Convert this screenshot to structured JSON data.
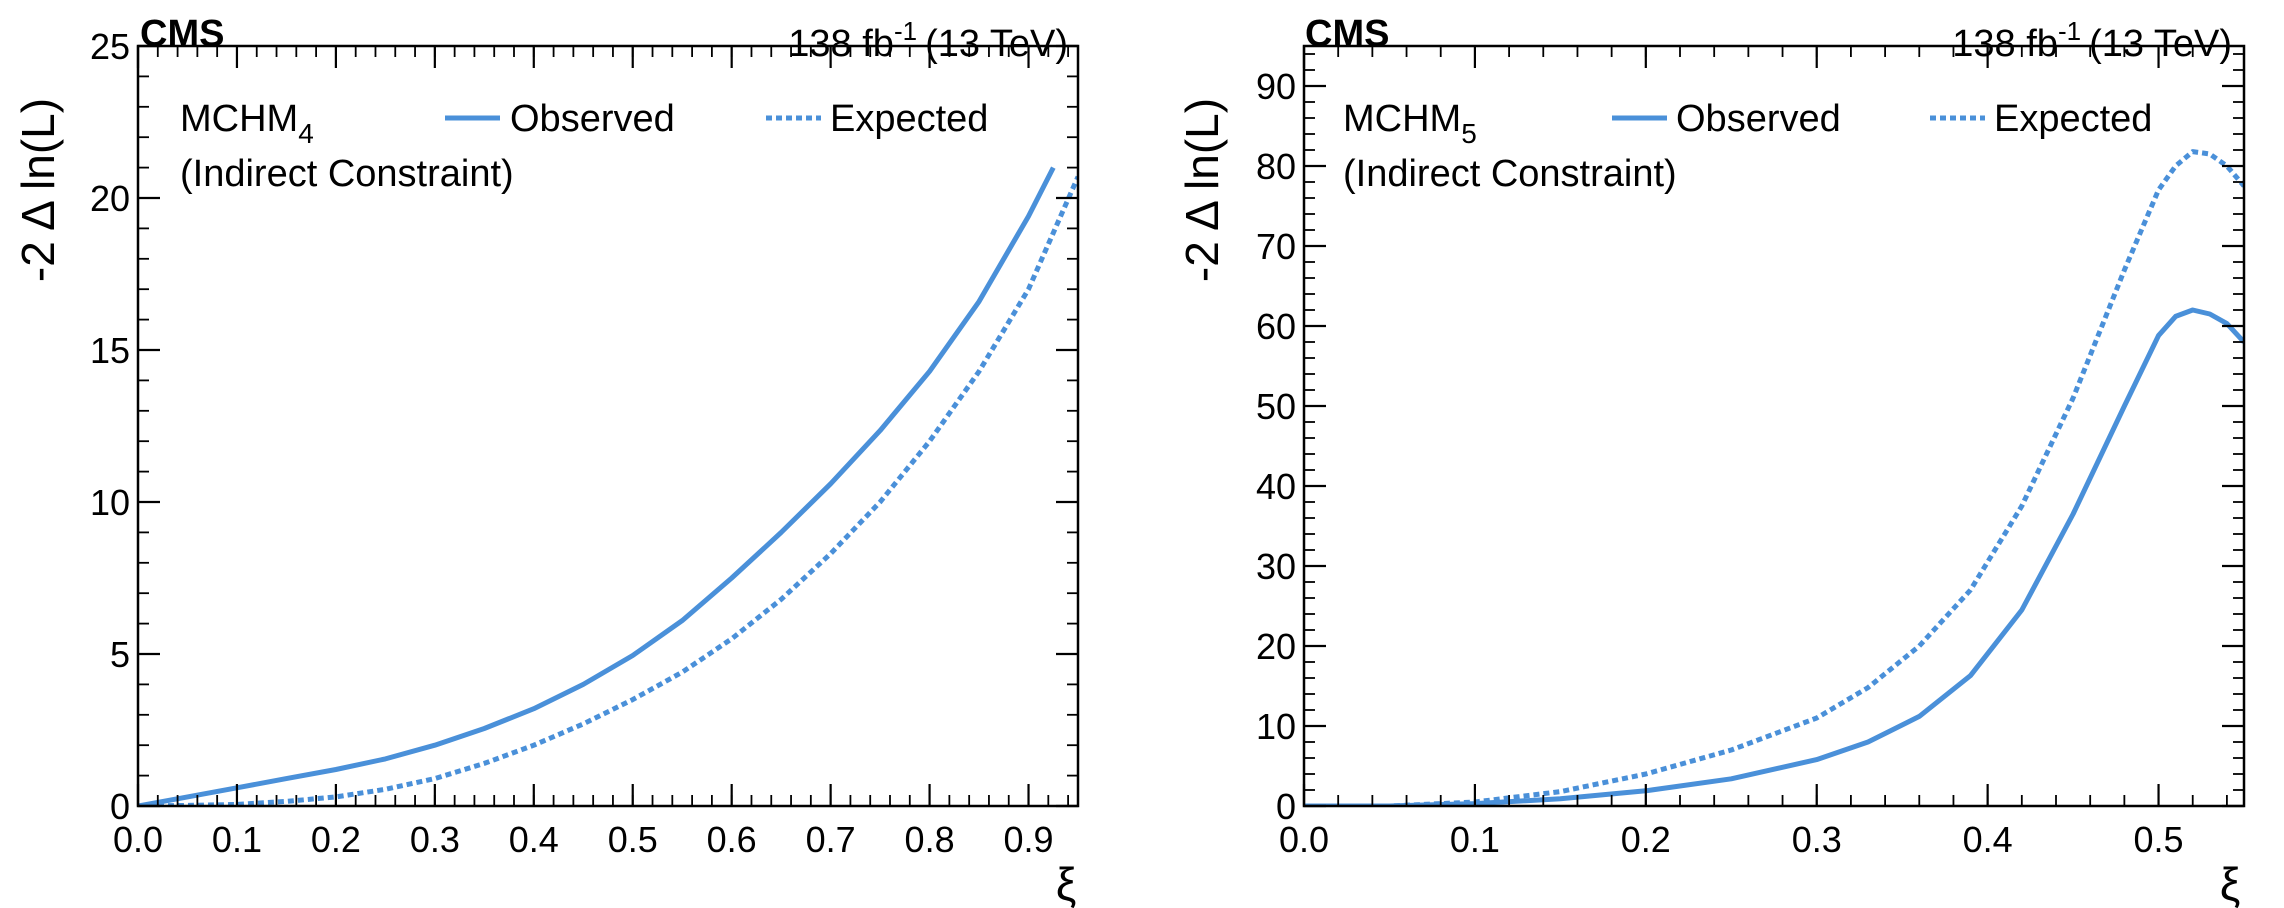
{
  "figure": {
    "experiment": "CMS",
    "lumi_value": "138 fb",
    "lumi_exp": "-1",
    "energy": "(13 TeV)"
  },
  "chart_data": [
    {
      "type": "line",
      "ylabel": "-2 Δ ln(L)",
      "xlabel": "ξ",
      "xlim": [
        0,
        0.95
      ],
      "ylim": [
        0,
        25
      ],
      "xticks": [
        0.0,
        0.1,
        0.2,
        0.3,
        0.4,
        0.5,
        0.6,
        0.7,
        0.8,
        0.9
      ],
      "xtick_labels": [
        "0.0",
        "0.1",
        "0.2",
        "0.3",
        "0.4",
        "0.5",
        "0.6",
        "0.7",
        "0.8",
        "0.9"
      ],
      "yticks": [
        0,
        5,
        10,
        15,
        20,
        25
      ],
      "ytick_labels": [
        "0",
        "5",
        "10",
        "15",
        "20",
        "25"
      ],
      "xminor": 0.02,
      "yminor": 1,
      "model_main": "MCHM",
      "model_sub": "4",
      "constraint": "(Indirect Constraint)",
      "legend_position": "top",
      "color": "#4a90d9",
      "series": [
        {
          "name": "Observed",
          "style": "solid",
          "x": [
            0,
            0.05,
            0.1,
            0.15,
            0.2,
            0.25,
            0.3,
            0.35,
            0.4,
            0.45,
            0.5,
            0.55,
            0.6,
            0.65,
            0.7,
            0.75,
            0.8,
            0.85,
            0.9,
            0.925
          ],
          "y": [
            0,
            0.3,
            0.6,
            0.9,
            1.2,
            1.55,
            2.0,
            2.55,
            3.2,
            4.0,
            4.95,
            6.1,
            7.5,
            9.0,
            10.6,
            12.35,
            14.3,
            16.6,
            19.4,
            21.0
          ]
        },
        {
          "name": "Expected",
          "style": "dashed",
          "x": [
            0,
            0.05,
            0.1,
            0.15,
            0.2,
            0.25,
            0.3,
            0.35,
            0.4,
            0.45,
            0.5,
            0.55,
            0.6,
            0.65,
            0.7,
            0.75,
            0.8,
            0.85,
            0.9,
            0.95
          ],
          "y": [
            0,
            0.02,
            0.05,
            0.15,
            0.3,
            0.55,
            0.9,
            1.4,
            2.0,
            2.7,
            3.5,
            4.4,
            5.5,
            6.8,
            8.3,
            10.0,
            12.0,
            14.3,
            17.0,
            20.7
          ]
        }
      ]
    },
    {
      "type": "line",
      "ylabel": "-2 Δ ln(L)",
      "xlabel": "ξ",
      "xlim": [
        0,
        0.55
      ],
      "ylim": [
        0,
        95
      ],
      "xticks": [
        0.0,
        0.1,
        0.2,
        0.3,
        0.4,
        0.5
      ],
      "xtick_labels": [
        "0.0",
        "0.1",
        "0.2",
        "0.3",
        "0.4",
        "0.5"
      ],
      "yticks": [
        0,
        10,
        20,
        30,
        40,
        50,
        60,
        70,
        80,
        90
      ],
      "ytick_labels": [
        "0",
        "10",
        "20",
        "30",
        "40",
        "50",
        "60",
        "70",
        "80",
        "90"
      ],
      "xminor": 0.02,
      "yminor": 2,
      "model_main": "MCHM",
      "model_sub": "5",
      "constraint": "(Indirect Constraint)",
      "legend_position": "top",
      "color": "#4a90d9",
      "series": [
        {
          "name": "Observed",
          "style": "solid",
          "x": [
            0,
            0.05,
            0.1,
            0.15,
            0.2,
            0.25,
            0.3,
            0.33,
            0.36,
            0.39,
            0.42,
            0.45,
            0.48,
            0.5,
            0.51,
            0.52,
            0.53,
            0.54,
            0.55
          ],
          "y": [
            0,
            0,
            0.3,
            0.9,
            1.9,
            3.4,
            5.8,
            8.0,
            11.2,
            16.3,
            24.5,
            36.5,
            50.0,
            58.8,
            61.2,
            62.0,
            61.5,
            60.3,
            58.0
          ]
        },
        {
          "name": "Expected",
          "style": "dashed",
          "x": [
            0,
            0.05,
            0.1,
            0.15,
            0.2,
            0.25,
            0.3,
            0.33,
            0.36,
            0.39,
            0.42,
            0.45,
            0.48,
            0.5,
            0.51,
            0.52,
            0.53,
            0.54,
            0.55
          ],
          "y": [
            0,
            0,
            0.5,
            1.8,
            4.0,
            7.0,
            11.0,
            14.8,
            20.0,
            27.0,
            37.5,
            51.0,
            67.0,
            77.0,
            80.0,
            81.8,
            81.5,
            80.0,
            77.5
          ]
        }
      ]
    }
  ]
}
